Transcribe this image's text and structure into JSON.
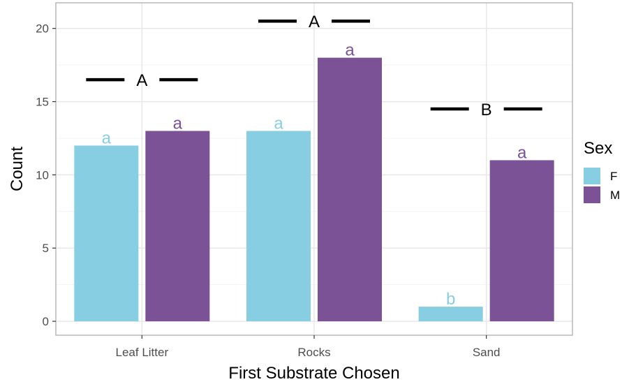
{
  "chart_data": {
    "type": "bar",
    "xlabel": "First Substrate Chosen",
    "ylabel": "Count",
    "categories": [
      "Leaf Litter",
      "Rocks",
      "Sand"
    ],
    "yticks": [
      0,
      5,
      10,
      15,
      20
    ],
    "ylim": [
      -0.95,
      21.75
    ],
    "grid": true,
    "legend": {
      "title": "Sex",
      "placement": "right",
      "entries": [
        {
          "label": "F",
          "color": "#87CEE2"
        },
        {
          "label": "M",
          "color": "#7B5295"
        }
      ]
    },
    "series": [
      {
        "name": "F",
        "color": "#87CEE2",
        "values": [
          12,
          13,
          1
        ],
        "labels": [
          "a",
          "a",
          "b"
        ]
      },
      {
        "name": "M",
        "color": "#7B5295",
        "values": [
          13,
          18,
          11
        ],
        "labels": [
          "a",
          "a",
          "a"
        ]
      }
    ],
    "group_annotations": [
      {
        "category": "Leaf Litter",
        "label": "A",
        "y": 16.5
      },
      {
        "category": "Rocks",
        "label": "A",
        "y": 20.5
      },
      {
        "category": "Sand",
        "label": "B",
        "y": 14.5
      }
    ]
  }
}
